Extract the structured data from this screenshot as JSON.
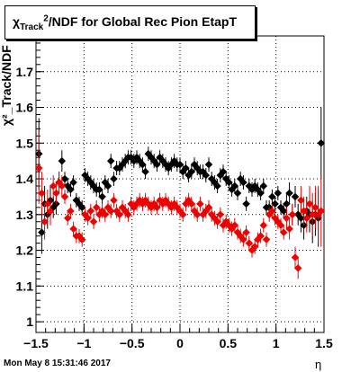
{
  "page": {
    "timestamp": "Mon May  8 15:31:46 2017"
  },
  "chart_data": {
    "type": "scatter",
    "title": {
      "prefix": "χ",
      "sup": "2",
      "sub": "Track",
      "suffix": "/NDF for Global Rec Pion EtapT"
    },
    "ylabel": "χ²_Track/NDF",
    "xlabel": "η",
    "xlim": [
      -1.5,
      1.5
    ],
    "ylim": [
      0.97,
      1.8
    ],
    "grid": true,
    "x_ticks": [
      -1.5,
      -1,
      -0.5,
      0,
      0.5,
      1,
      1.5
    ],
    "x_tick_labels": [
      "−1.5",
      "−1",
      "−0.5",
      "0",
      "0.5",
      "1",
      "1.5"
    ],
    "y_ticks": [
      1,
      1.1,
      1.2,
      1.3,
      1.4,
      1.5,
      1.6,
      1.7
    ],
    "y_tick_labels": [
      "1",
      "1.1",
      "1.2",
      "1.3",
      "1.4",
      "1.5",
      "1.6",
      "1.7"
    ],
    "x": [
      -1.47,
      -1.44,
      -1.41,
      -1.38,
      -1.35,
      -1.32,
      -1.29,
      -1.26,
      -1.23,
      -1.2,
      -1.17,
      -1.14,
      -1.11,
      -1.08,
      -1.05,
      -1.02,
      -0.99,
      -0.96,
      -0.93,
      -0.9,
      -0.87,
      -0.84,
      -0.81,
      -0.78,
      -0.75,
      -0.72,
      -0.69,
      -0.66,
      -0.63,
      -0.6,
      -0.57,
      -0.54,
      -0.51,
      -0.48,
      -0.45,
      -0.42,
      -0.39,
      -0.36,
      -0.33,
      -0.3,
      -0.27,
      -0.24,
      -0.21,
      -0.18,
      -0.15,
      -0.12,
      -0.09,
      -0.06,
      -0.03,
      0.0,
      0.03,
      0.06,
      0.09,
      0.12,
      0.15,
      0.18,
      0.21,
      0.24,
      0.27,
      0.3,
      0.33,
      0.36,
      0.39,
      0.42,
      0.45,
      0.48,
      0.51,
      0.54,
      0.57,
      0.6,
      0.63,
      0.66,
      0.69,
      0.72,
      0.75,
      0.78,
      0.81,
      0.84,
      0.87,
      0.9,
      0.93,
      0.96,
      0.99,
      1.02,
      1.05,
      1.08,
      1.11,
      1.14,
      1.17,
      1.2,
      1.23,
      1.26,
      1.29,
      1.32,
      1.35,
      1.38,
      1.41,
      1.44,
      1.47
    ],
    "series": [
      {
        "color": "#000000",
        "values": [
          1.47,
          1.25,
          1.33,
          1.3,
          1.34,
          1.32,
          1.33,
          1.39,
          1.45,
          1.4,
          1.38,
          1.37,
          1.39,
          1.34,
          1.33,
          1.32,
          1.41,
          1.4,
          1.39,
          1.38,
          1.37,
          1.37,
          1.35,
          1.39,
          1.38,
          1.45,
          1.4,
          1.43,
          1.43,
          1.44,
          1.45,
          1.46,
          1.46,
          1.45,
          1.46,
          1.45,
          1.44,
          1.42,
          1.47,
          1.46,
          1.45,
          1.44,
          1.46,
          1.45,
          1.44,
          1.43,
          1.44,
          1.45,
          1.44,
          1.44,
          1.42,
          1.43,
          1.41,
          1.42,
          1.44,
          1.43,
          1.42,
          1.42,
          1.41,
          1.44,
          1.4,
          1.39,
          1.38,
          1.41,
          1.42,
          1.4,
          1.39,
          1.37,
          1.38,
          1.36,
          1.4,
          1.39,
          1.33,
          1.38,
          1.37,
          1.38,
          1.37,
          1.36,
          1.38,
          1.32,
          1.32,
          1.35,
          1.33,
          1.36,
          1.32,
          1.31,
          1.33,
          1.36,
          1.3,
          1.35,
          1.3,
          1.29,
          1.27,
          1.31,
          1.3,
          1.28,
          1.3,
          1.29,
          1.5
        ],
        "errors": [
          0.1,
          0.06,
          0.05,
          0.04,
          0.04,
          0.03,
          0.03,
          0.03,
          0.03,
          0.02,
          0.02,
          0.02,
          0.02,
          0.02,
          0.02,
          0.02,
          0.02,
          0.02,
          0.02,
          0.02,
          0.02,
          0.02,
          0.02,
          0.02,
          0.02,
          0.02,
          0.02,
          0.02,
          0.02,
          0.02,
          0.02,
          0.02,
          0.02,
          0.02,
          0.02,
          0.02,
          0.02,
          0.02,
          0.02,
          0.02,
          0.02,
          0.02,
          0.02,
          0.02,
          0.02,
          0.02,
          0.02,
          0.02,
          0.02,
          0.02,
          0.02,
          0.02,
          0.02,
          0.02,
          0.02,
          0.02,
          0.02,
          0.02,
          0.02,
          0.02,
          0.02,
          0.02,
          0.02,
          0.02,
          0.02,
          0.02,
          0.02,
          0.02,
          0.02,
          0.02,
          0.02,
          0.02,
          0.02,
          0.02,
          0.02,
          0.02,
          0.02,
          0.02,
          0.02,
          0.02,
          0.02,
          0.02,
          0.02,
          0.02,
          0.02,
          0.02,
          0.03,
          0.03,
          0.03,
          0.03,
          0.03,
          0.04,
          0.04,
          0.04,
          0.05,
          0.06,
          0.06,
          0.08,
          0.1
        ]
      },
      {
        "color": "#ee0000",
        "values": [
          1.43,
          1.36,
          1.28,
          1.33,
          1.31,
          1.38,
          1.36,
          1.39,
          1.38,
          1.35,
          1.29,
          1.31,
          1.26,
          1.24,
          1.24,
          1.23,
          1.3,
          1.29,
          1.31,
          1.28,
          1.32,
          1.3,
          1.31,
          1.3,
          1.32,
          1.31,
          1.34,
          1.31,
          1.3,
          1.32,
          1.31,
          1.3,
          1.33,
          1.32,
          1.33,
          1.34,
          1.33,
          1.34,
          1.33,
          1.32,
          1.33,
          1.32,
          1.34,
          1.33,
          1.34,
          1.33,
          1.32,
          1.33,
          1.32,
          1.31,
          1.3,
          1.33,
          1.34,
          1.33,
          1.31,
          1.3,
          1.33,
          1.3,
          1.31,
          1.32,
          1.3,
          1.29,
          1.28,
          1.3,
          1.27,
          1.28,
          1.27,
          1.26,
          1.27,
          1.25,
          1.24,
          1.23,
          1.25,
          1.22,
          1.2,
          1.21,
          1.23,
          1.24,
          1.27,
          1.23,
          1.3,
          1.31,
          1.29,
          1.28,
          1.27,
          1.25,
          1.29,
          1.26,
          1.3,
          1.18,
          1.15,
          1.34,
          1.31,
          1.29,
          1.33,
          1.3,
          1.32,
          1.3,
          1.31
        ],
        "errors": [
          0.1,
          0.06,
          0.05,
          0.04,
          0.04,
          0.03,
          0.03,
          0.03,
          0.03,
          0.02,
          0.02,
          0.02,
          0.02,
          0.02,
          0.02,
          0.02,
          0.02,
          0.02,
          0.02,
          0.02,
          0.02,
          0.02,
          0.02,
          0.02,
          0.02,
          0.02,
          0.02,
          0.02,
          0.02,
          0.02,
          0.02,
          0.02,
          0.02,
          0.02,
          0.02,
          0.02,
          0.02,
          0.02,
          0.02,
          0.02,
          0.02,
          0.02,
          0.02,
          0.02,
          0.02,
          0.02,
          0.02,
          0.02,
          0.02,
          0.02,
          0.02,
          0.02,
          0.02,
          0.02,
          0.02,
          0.02,
          0.02,
          0.02,
          0.02,
          0.02,
          0.02,
          0.02,
          0.02,
          0.02,
          0.02,
          0.02,
          0.02,
          0.02,
          0.02,
          0.02,
          0.02,
          0.02,
          0.02,
          0.02,
          0.02,
          0.02,
          0.02,
          0.02,
          0.02,
          0.02,
          0.02,
          0.02,
          0.02,
          0.02,
          0.02,
          0.02,
          0.03,
          0.03,
          0.03,
          0.03,
          0.03,
          0.04,
          0.04,
          0.04,
          0.05,
          0.06,
          0.06,
          0.08,
          0.1
        ]
      }
    ]
  }
}
